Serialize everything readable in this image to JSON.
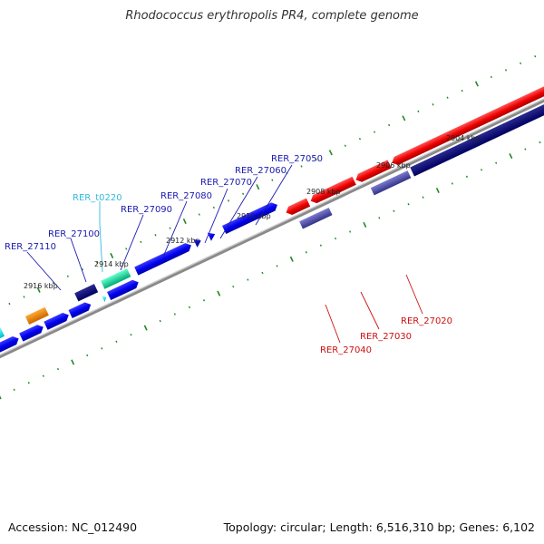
{
  "title": "Rhodococcus erythropolis PR4, complete genome",
  "footer": {
    "accession": "Accession: NC_012490",
    "topology": "Topology: circular; Length: 6,516,310 bp; Genes: 6,102"
  },
  "colors": {
    "forward_label": "#1a1ab0",
    "reverse_label": "#cc1111",
    "trna_label": "#33bbdd",
    "tick": "#228822",
    "backbone": "#888888"
  },
  "scale_labels": [
    "2904 kbp",
    "2906 kbp",
    "2908 kbp",
    "2910 kbp",
    "2912 kbp",
    "2914 kbp",
    "2916 kbp"
  ],
  "gene_labels": [
    {
      "text": "RER_27050",
      "strand": "forward"
    },
    {
      "text": "RER_27060",
      "strand": "forward"
    },
    {
      "text": "RER_27070",
      "strand": "forward"
    },
    {
      "text": "RER_27080",
      "strand": "forward"
    },
    {
      "text": "RER_t0220",
      "strand": "trna"
    },
    {
      "text": "RER_27090",
      "strand": "forward"
    },
    {
      "text": "RER_27100",
      "strand": "forward"
    },
    {
      "text": "RER_27110",
      "strand": "forward"
    },
    {
      "text": "RER_27020",
      "strand": "reverse"
    },
    {
      "text": "RER_27030",
      "strand": "reverse"
    },
    {
      "text": "RER_27040",
      "strand": "reverse"
    }
  ]
}
